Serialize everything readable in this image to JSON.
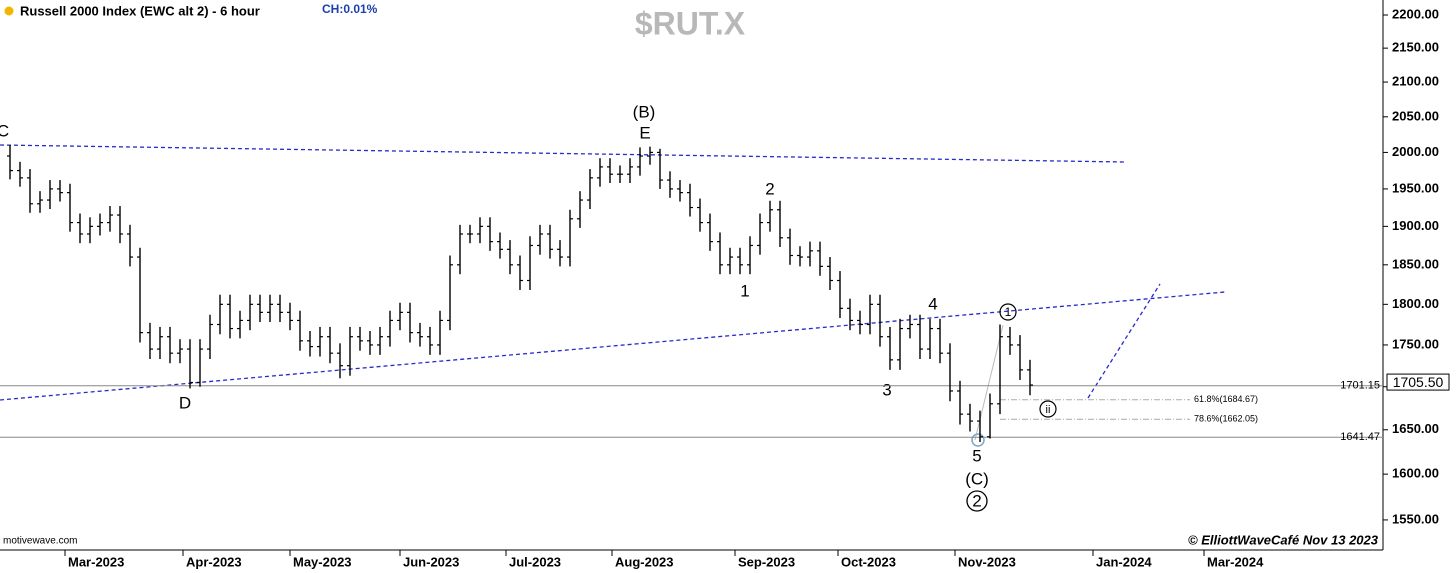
{
  "chart_data": {
    "type": "ohlc",
    "title": "Russell 2000 Index (EWC alt 2) - 6 hour",
    "change": "CH:0.01%",
    "symbol": "$RUT.X",
    "source": "motivewave.com",
    "credit": "© ElliottWaveCafé Nov 13 2023",
    "color": "#000000",
    "log_scale": true,
    "xlim": [
      0,
      138.3
    ],
    "xticks": [
      {
        "value": 6.5,
        "label": "Mar-2023"
      },
      {
        "value": 18.3,
        "label": "Apr-2023"
      },
      {
        "value": 29,
        "label": "May-2023"
      },
      {
        "value": 40,
        "label": "Jun-2023"
      },
      {
        "value": 50.6,
        "label": "Jul-2023"
      },
      {
        "value": 61.2,
        "label": "Aug-2023"
      },
      {
        "value": 73.5,
        "label": "Sep-2023"
      },
      {
        "value": 83.8,
        "label": "Oct-2023"
      },
      {
        "value": 95.5,
        "label": "Nov-2023"
      },
      {
        "value": 109.3,
        "label": "Jan-2024"
      },
      {
        "value": 120.4,
        "label": "Mar-2024"
      }
    ],
    "ylim": [
      1518,
      2223
    ],
    "yticks": [
      {
        "value": 2200,
        "label": "2200.00"
      },
      {
        "value": 2150,
        "label": "2150.00"
      },
      {
        "value": 2100,
        "label": "2100.00"
      },
      {
        "value": 2050,
        "label": "2050.00"
      },
      {
        "value": 2000,
        "label": "2000.00"
      },
      {
        "value": 1950,
        "label": "1950.00"
      },
      {
        "value": 1900,
        "label": "1900.00"
      },
      {
        "value": 1850,
        "label": "1850.00"
      },
      {
        "value": 1800,
        "label": "1800.00"
      },
      {
        "value": 1750,
        "label": "1750.00"
      },
      {
        "value": 1700,
        "label": "1700.00"
      },
      {
        "value": 1650,
        "label": "1650.00"
      },
      {
        "value": 1600,
        "label": "1600.00"
      },
      {
        "value": 1550,
        "label": "1550.00"
      }
    ],
    "open": [
      1995,
      1975,
      1965,
      1930,
      1935,
      1950,
      1945,
      1905,
      1890,
      1900,
      1905,
      1915,
      1890,
      1860,
      1765,
      1745,
      1760,
      1740,
      1745,
      1705,
      1745,
      1775,
      1800,
      1770,
      1780,
      1800,
      1790,
      1800,
      1790,
      1780,
      1755,
      1748,
      1760,
      1740,
      1725,
      1760,
      1755,
      1750,
      1760,
      1780,
      1790,
      1765,
      1760,
      1750,
      1780,
      1850,
      1890,
      1890,
      1900,
      1880,
      1870,
      1850,
      1830,
      1875,
      1890,
      1870,
      1860,
      1910,
      1935,
      1965,
      1980,
      1970,
      1970,
      1980,
      1995,
      2000,
      1962,
      1950,
      1945,
      1925,
      1905,
      1880,
      1850,
      1860,
      1850,
      1875,
      1905,
      1922,
      1885,
      1862,
      1860,
      1868,
      1848,
      1830,
      1795,
      1780,
      1775,
      1800,
      1760,
      1732,
      1770,
      1775,
      1745,
      1770,
      1740,
      1695,
      1668,
      1660,
      1642,
      1680,
      1760,
      1750,
      1720
    ],
    "high": [
      2010,
      1987,
      1977,
      1947,
      1962,
      1962,
      1957,
      1917,
      1912,
      1917,
      1927,
      1927,
      1902,
      1872,
      1777,
      1772,
      1772,
      1757,
      1757,
      1757,
      1787,
      1812,
      1812,
      1792,
      1812,
      1812,
      1812,
      1812,
      1802,
      1792,
      1767,
      1772,
      1772,
      1752,
      1772,
      1772,
      1767,
      1772,
      1792,
      1802,
      1802,
      1777,
      1772,
      1792,
      1862,
      1902,
      1902,
      1912,
      1912,
      1892,
      1882,
      1862,
      1887,
      1902,
      1902,
      1882,
      1922,
      1947,
      1977,
      1992,
      1992,
      1982,
      1992,
      2007,
      2008,
      2005,
      1974,
      1962,
      1957,
      1937,
      1917,
      1892,
      1872,
      1872,
      1887,
      1917,
      1934,
      1934,
      1897,
      1874,
      1880,
      1880,
      1860,
      1842,
      1807,
      1792,
      1812,
      1812,
      1772,
      1782,
      1787,
      1787,
      1782,
      1782,
      1752,
      1707,
      1680,
      1672,
      1692,
      1775,
      1772,
      1762,
      1732
    ],
    "low": [
      1963,
      1953,
      1918,
      1918,
      1923,
      1933,
      1893,
      1878,
      1878,
      1888,
      1893,
      1878,
      1848,
      1753,
      1733,
      1733,
      1728,
      1728,
      1698,
      1700,
      1733,
      1763,
      1758,
      1758,
      1768,
      1778,
      1778,
      1778,
      1768,
      1743,
      1736,
      1736,
      1728,
      1710,
      1713,
      1743,
      1738,
      1738,
      1748,
      1768,
      1753,
      1748,
      1738,
      1738,
      1768,
      1838,
      1878,
      1878,
      1868,
      1858,
      1838,
      1818,
      1818,
      1863,
      1858,
      1848,
      1848,
      1898,
      1923,
      1953,
      1958,
      1958,
      1958,
      1968,
      1983,
      1950,
      1938,
      1933,
      1913,
      1893,
      1868,
      1838,
      1838,
      1838,
      1838,
      1863,
      1893,
      1873,
      1850,
      1848,
      1848,
      1836,
      1818,
      1783,
      1768,
      1763,
      1763,
      1748,
      1720,
      1720,
      1758,
      1733,
      1733,
      1728,
      1683,
      1656,
      1648,
      1636,
      1640,
      1668,
      1738,
      1708,
      1690
    ],
    "close": [
      1975,
      1965,
      1930,
      1935,
      1950,
      1945,
      1905,
      1890,
      1900,
      1905,
      1915,
      1890,
      1860,
      1765,
      1745,
      1760,
      1740,
      1745,
      1705,
      1745,
      1775,
      1800,
      1770,
      1780,
      1800,
      1790,
      1800,
      1790,
      1780,
      1755,
      1748,
      1760,
      1740,
      1725,
      1760,
      1755,
      1750,
      1760,
      1780,
      1790,
      1765,
      1760,
      1750,
      1780,
      1850,
      1890,
      1890,
      1900,
      1880,
      1870,
      1850,
      1830,
      1875,
      1890,
      1870,
      1860,
      1910,
      1935,
      1965,
      1980,
      1970,
      1970,
      1980,
      1995,
      2000,
      1962,
      1950,
      1945,
      1925,
      1905,
      1880,
      1850,
      1860,
      1850,
      1875,
      1905,
      1922,
      1885,
      1862,
      1860,
      1868,
      1848,
      1830,
      1795,
      1780,
      1775,
      1800,
      1760,
      1732,
      1770,
      1775,
      1745,
      1770,
      1740,
      1695,
      1668,
      1660,
      1642,
      1680,
      1760,
      1750,
      1720,
      1702
    ],
    "levels": [
      1701.15,
      1641.47
    ],
    "fib_levels": [
      {
        "value": 1684.67,
        "label": "61.8%(1684.67)"
      },
      {
        "value": 1662.05,
        "label": "78.6%(1662.05)"
      }
    ],
    "last_price": {
      "value": 1705.5,
      "label": "1705.50"
    },
    "annotations": [
      "C",
      "(B)",
      "E",
      "D",
      "1",
      "2",
      "3",
      "4",
      "5",
      "(C)",
      "2",
      "1",
      "ii"
    ]
  }
}
